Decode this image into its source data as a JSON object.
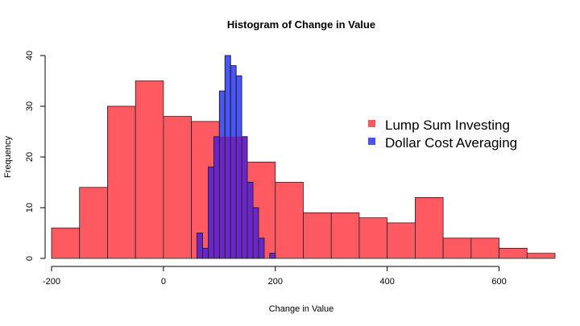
{
  "chart_data": {
    "type": "histogram",
    "title": "Histogram of Change in Value",
    "xlabel": "Change in Value",
    "ylabel": "Frequency",
    "xlim": [
      -200,
      700
    ],
    "ylim": [
      0,
      40
    ],
    "xticks": [
      -200,
      0,
      200,
      400,
      600
    ],
    "yticks": [
      0,
      10,
      20,
      30,
      40
    ],
    "grid": false,
    "legend": "right",
    "series": [
      {
        "name": "Lump Sum Investing",
        "color": "#ff5a62",
        "bin_edges": [
          -200,
          -150,
          -100,
          -50,
          0,
          50,
          100,
          150,
          200,
          250,
          300,
          350,
          400,
          450,
          500,
          550,
          600,
          650,
          700
        ],
        "counts": [
          6,
          14,
          30,
          35,
          28,
          27,
          24,
          19,
          15,
          9,
          9,
          8,
          7,
          12,
          4,
          4,
          2,
          1
        ]
      },
      {
        "name": "Dollar Cost Averaging",
        "color": "#4a55f7",
        "bin_edges": [
          60,
          70,
          80,
          90,
          100,
          110,
          120,
          130,
          140,
          150,
          160,
          170,
          180,
          190,
          200
        ],
        "counts": [
          5,
          2,
          18,
          24,
          33,
          40,
          38,
          36,
          24,
          15,
          10,
          4,
          0,
          1
        ]
      }
    ],
    "overlap_color": "#6a26c8"
  }
}
